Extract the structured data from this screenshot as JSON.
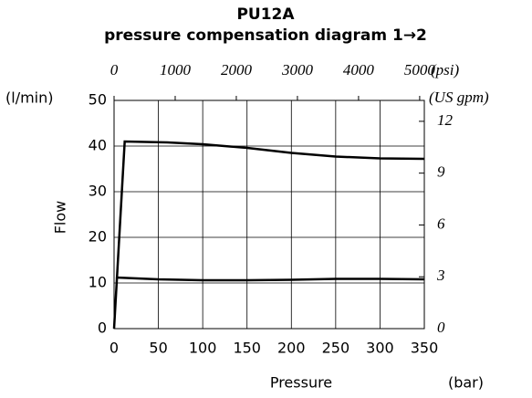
{
  "chart_data": {
    "type": "line",
    "title": "PU12A",
    "subtitle": "pressure compensation diagram 1→2",
    "x_label": "Pressure",
    "x_unit": "(bar)",
    "y_label": "Flow",
    "y_unit": "(l/min)",
    "x2_unit": "(psi)",
    "y2_unit": "(US gpm)",
    "xlim": [
      0,
      350
    ],
    "xticks": [
      0,
      50,
      100,
      150,
      200,
      250,
      300,
      350
    ],
    "ylim": [
      0,
      50
    ],
    "yticks": [
      0,
      10,
      20,
      30,
      40,
      50
    ],
    "x2lim": [
      0,
      5076
    ],
    "x2ticks": [
      0,
      1000,
      2000,
      3000,
      4000,
      5000
    ],
    "y2lim": [
      0,
      13.21
    ],
    "y2ticks": [
      0,
      3,
      6,
      9,
      12
    ],
    "grid": true,
    "series": [
      {
        "color": "#000000",
        "x": [
          0,
          12,
          60,
          100,
          150,
          200,
          250,
          300,
          350
        ],
        "values": [
          0,
          41,
          40.8,
          40.4,
          39.6,
          38.5,
          37.7,
          37.3,
          37.2
        ]
      },
      {
        "color": "#000000",
        "x": [
          2,
          50,
          100,
          150,
          200,
          250,
          300,
          350
        ],
        "values": [
          11.2,
          10.8,
          10.6,
          10.6,
          10.7,
          10.9,
          10.9,
          10.8
        ]
      }
    ]
  }
}
